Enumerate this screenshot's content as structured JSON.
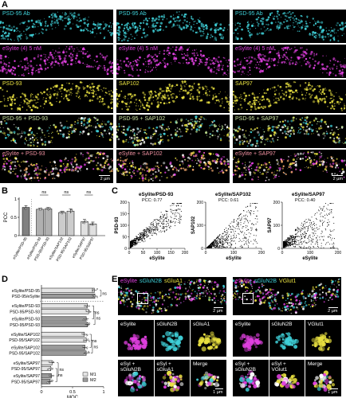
{
  "panels": {
    "A": "A",
    "B": "B",
    "C": "C",
    "D": "D",
    "E": "E"
  },
  "panel_a": {
    "rows": [
      [
        "PSD-95 Ab",
        "PSD-95 Ab",
        "PSD-95 Ab"
      ],
      [
        "eSylite (4) 5 nM",
        "eSylite (4) 5 nM",
        "eSylite (4) 5 nM"
      ],
      [
        "PSD-93",
        "SAP102",
        "SAP97"
      ],
      [
        "PSD-95 + PSD-93",
        "PSD-95 + SAP102",
        "PSD-95 + SAP97"
      ],
      [
        "eSylite + PSD-93",
        "eSylite + SAP102",
        "eSylite + SAP97"
      ]
    ],
    "row_colors": [
      "#3fd0d8",
      "#e040e0",
      "#e8e040",
      "#c8e0a0",
      "#f090a0"
    ],
    "scale": "2 µm"
  },
  "panel_b": {
    "ylabel": "PCC",
    "yticks": [
      "0",
      "0.5",
      "1"
    ],
    "ns_labels": [
      "ns",
      "ns",
      "ns"
    ]
  },
  "chart_data": [
    {
      "type": "bar",
      "panel": "B",
      "categories": [
        "eSylite/PSD-95",
        "eSylite/PSD-93",
        "PSD-95/PSD-93",
        "eSylite/SAP102",
        "PSD-95/SAP102",
        "eSylite/SAP97",
        "PSD-95/SAP97"
      ],
      "values": [
        0.77,
        0.72,
        0.73,
        0.63,
        0.67,
        0.38,
        0.32
      ],
      "errors": [
        0.05,
        0.03,
        0.04,
        0.04,
        0.06,
        0.06,
        0.05
      ],
      "colors": [
        "#808080",
        "#b0b0b0",
        "#b0b0b0",
        "#cccccc",
        "#cccccc",
        "#e0e0e0",
        "#e0e0e0"
      ],
      "ylabel": "PCC",
      "ylim": [
        0,
        1
      ]
    },
    {
      "type": "scatter",
      "panel": "C",
      "plots": [
        {
          "title": "eSylite/PSD-93",
          "pcc": "PCC: 0.77",
          "xlabel": "eSylite",
          "ylabel": "PSD-93",
          "xticks": [
            "0",
            "50",
            "100",
            "150",
            "200"
          ],
          "yticks": [
            "0",
            "50",
            "100",
            "150",
            "200"
          ]
        },
        {
          "title": "eSylite/SAP102",
          "pcc": "PCC: 0.61",
          "xlabel": "eSylite",
          "ylabel": "SAP102",
          "xticks": [
            "0",
            "100",
            "200"
          ],
          "yticks": [
            "0",
            "100",
            "200"
          ]
        },
        {
          "title": "eSylite/SAP97",
          "pcc": "PCC: 0.40",
          "xlabel": "eSylite",
          "ylabel": "SAP97",
          "xticks": [
            "0",
            "100",
            "200"
          ],
          "yticks": [
            "0",
            "100",
            "200"
          ]
        }
      ]
    },
    {
      "type": "bar",
      "panel": "D",
      "orientation": "horizontal",
      "categories": [
        "eSylite/PSD-95",
        "PSD-95/eSylite",
        "eSylite/PSD-93",
        "PSD-95/PSD-93",
        "eSylite/PSD-93",
        "PSD-95/PSD-93",
        "eSylite/SAP102",
        "PSD-95/SAP102",
        "eSylite/SAP102",
        "PSD-95/SAP102",
        "eSylite/SAP97",
        "PSD-95/SAP97",
        "eSylite/SAP97",
        "PSD-95/SAP97"
      ],
      "values": [
        0.85,
        0.86,
        0.74,
        0.76,
        0.72,
        0.74,
        0.69,
        0.72,
        0.7,
        0.72,
        0.17,
        0.15,
        0.16,
        0.14
      ],
      "series_of_bar": [
        "M1",
        "M2",
        "M1",
        "M1",
        "M2",
        "M2",
        "M1",
        "M1",
        "M2",
        "M2",
        "M1",
        "M1",
        "M2",
        "M2"
      ],
      "xlabel": "MOC",
      "xticks": [
        "0",
        "0.5",
        "1"
      ],
      "xlim": [
        0,
        1
      ],
      "legend": [
        "M1",
        "M2"
      ],
      "ns_labels": [
        "ns",
        "ns",
        "ns",
        "ns",
        "ns",
        "ns",
        "ns"
      ]
    }
  ],
  "panel_e": {
    "left": {
      "header": [
        "eSylite",
        "sGluN2B",
        "sGluA1"
      ],
      "header_colors": [
        "#e040e0",
        "#3fd0d8",
        "#e8e040"
      ],
      "row1": [
        "eSylite",
        "sGluN2B",
        "sGluA1"
      ],
      "row2": [
        "eSyl +\nsGluN2B",
        "eSyl +\nsGluA1",
        "Merge"
      ],
      "scale_top": "2 µm",
      "scale_bottom": "1 µm"
    },
    "right": {
      "header": [
        "eSylite",
        "sGluN2B",
        "VGlut1"
      ],
      "header_colors": [
        "#e040e0",
        "#3fd0d8",
        "#e8e040"
      ],
      "row1": [
        "eSylite",
        "sGluN2B",
        "VGlut1"
      ],
      "row2": [
        "eSyl +\nsGluN2B",
        "eSyl +\nVGlut1",
        "Merge"
      ],
      "scale_top": "2 µm",
      "scale_bottom": "1 µm"
    }
  }
}
